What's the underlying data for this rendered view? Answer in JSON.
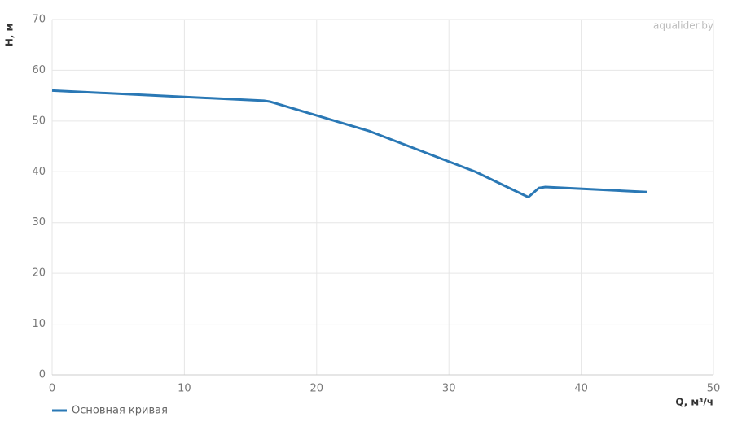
{
  "chart_data": {
    "type": "line",
    "watermark": "aqualider.by",
    "y_label": "H, м",
    "x_label": "Q, м³/ч",
    "x": [
      0,
      16,
      16.5,
      24,
      32,
      36,
      36.8,
      37.3,
      45
    ],
    "series": [
      {
        "name": "Основная кривая",
        "color": "#2a78b5",
        "values": [
          56,
          54,
          53.8,
          48,
          40,
          35,
          36.8,
          37,
          36
        ]
      }
    ],
    "xlim": [
      0,
      50
    ],
    "xticks": [
      0,
      10,
      20,
      30,
      40,
      50
    ],
    "ylim": [
      0,
      70
    ],
    "yticks": [
      0,
      10,
      20,
      30,
      40,
      50,
      60,
      70
    ],
    "grid": true,
    "legend": "bottom-left"
  }
}
